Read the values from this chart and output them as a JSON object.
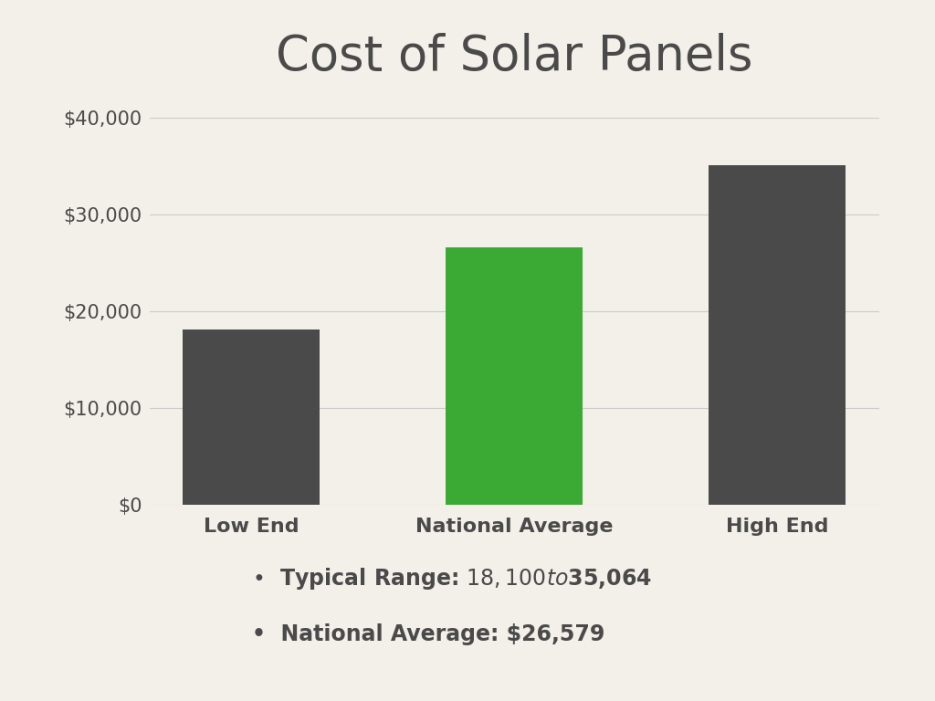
{
  "title": "Cost of Solar Panels",
  "categories": [
    "Low End",
    "National Average",
    "High End"
  ],
  "values": [
    18100,
    26579,
    35064
  ],
  "bar_colors": [
    "#4a4a4a",
    "#3aaa35",
    "#4a4a4a"
  ],
  "background_color": "#f2f0e8",
  "ylim": [
    0,
    42000
  ],
  "yticks": [
    0,
    10000,
    20000,
    30000,
    40000
  ],
  "ytick_labels": [
    "$0",
    "$10,000",
    "$20,000",
    "$30,000",
    "$40,000"
  ],
  "title_fontsize": 38,
  "tick_fontsize": 15,
  "xlabel_fontsize": 16,
  "bullet1": "Typical Range: $18,100 to $35,064",
  "bullet2": "National Average: $26,579",
  "text_color": "#4a4a4a",
  "grid_color": "#cccccc",
  "bar_width": 0.52
}
